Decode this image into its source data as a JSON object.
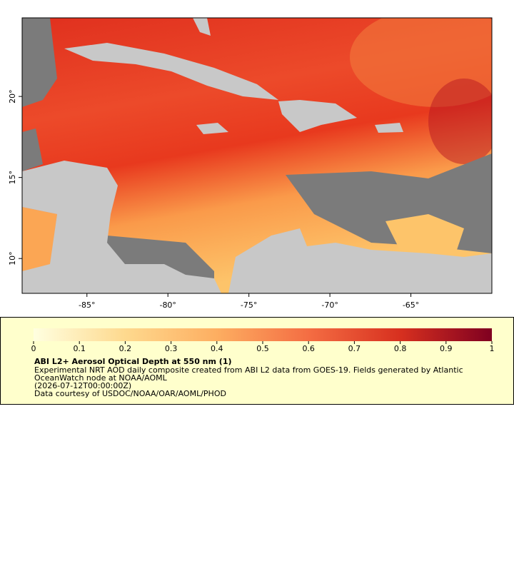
{
  "map": {
    "xlim": [
      -89,
      -60
    ],
    "ylim": [
      7.85,
      24.85
    ],
    "xticks": [
      {
        "value": -85,
        "label": "-85°"
      },
      {
        "value": -80,
        "label": "-80°"
      },
      {
        "value": -75,
        "label": "-75°"
      },
      {
        "value": -70,
        "label": "-70°"
      },
      {
        "value": -65,
        "label": "-65°"
      }
    ],
    "yticks": [
      {
        "value": 10,
        "label": "10°"
      },
      {
        "value": 15,
        "label": "15°"
      },
      {
        "value": 20,
        "label": "20°"
      }
    ]
  },
  "legend": {
    "clim": [
      0,
      1
    ],
    "ticks": [
      0,
      0.1,
      0.2,
      0.3,
      0.4,
      0.5,
      0.6,
      0.7,
      0.8,
      0.9,
      1
    ],
    "title": "ABI L2+ Aerosol Optical Depth at 550 nm (1)",
    "lines": [
      "Experimental NRT AOD daily composite created from ABI L2 data from GOES-19. Fields generated by Atlantic",
      "OceanWatch node at NOAA/AOML",
      "(2026-07-12T00:00:00Z)",
      "Data courtesy of USDOC/NOAA/OAR/AOML/PHOD"
    ]
  }
}
